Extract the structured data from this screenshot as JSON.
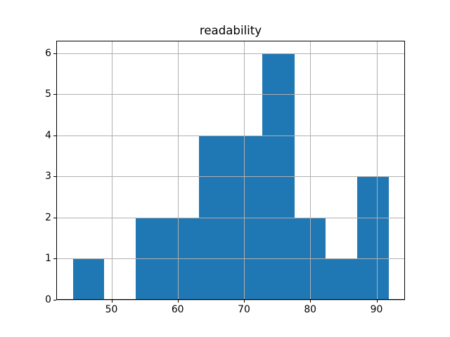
{
  "chart_data": {
    "type": "bar",
    "subtype": "histogram",
    "title": "readability",
    "xlabel": "",
    "ylabel": "",
    "bin_edges": [
      44.2,
      48.9,
      53.7,
      58.5,
      63.2,
      68.0,
      72.8,
      77.6,
      82.3,
      87.1,
      91.9
    ],
    "counts": [
      1,
      0,
      2,
      2,
      4,
      4,
      6,
      2,
      1,
      3
    ],
    "xlim": [
      41.67,
      94.3
    ],
    "ylim": [
      0,
      6.3
    ],
    "xticks": [
      50,
      60,
      70,
      80,
      90
    ],
    "xtick_labels": [
      "50",
      "60",
      "70",
      "80",
      "90"
    ],
    "yticks": [
      0,
      1,
      2,
      3,
      4,
      5,
      6
    ],
    "ytick_labels": [
      "0",
      "1",
      "2",
      "3",
      "4",
      "5",
      "6"
    ],
    "grid": true,
    "grid_above_bars": true,
    "legend": null,
    "colors": {
      "bar": "#1f77b4",
      "grid": "#b0b0b0",
      "spine": "#000000",
      "text": "#000000",
      "background": "#ffffff"
    }
  }
}
